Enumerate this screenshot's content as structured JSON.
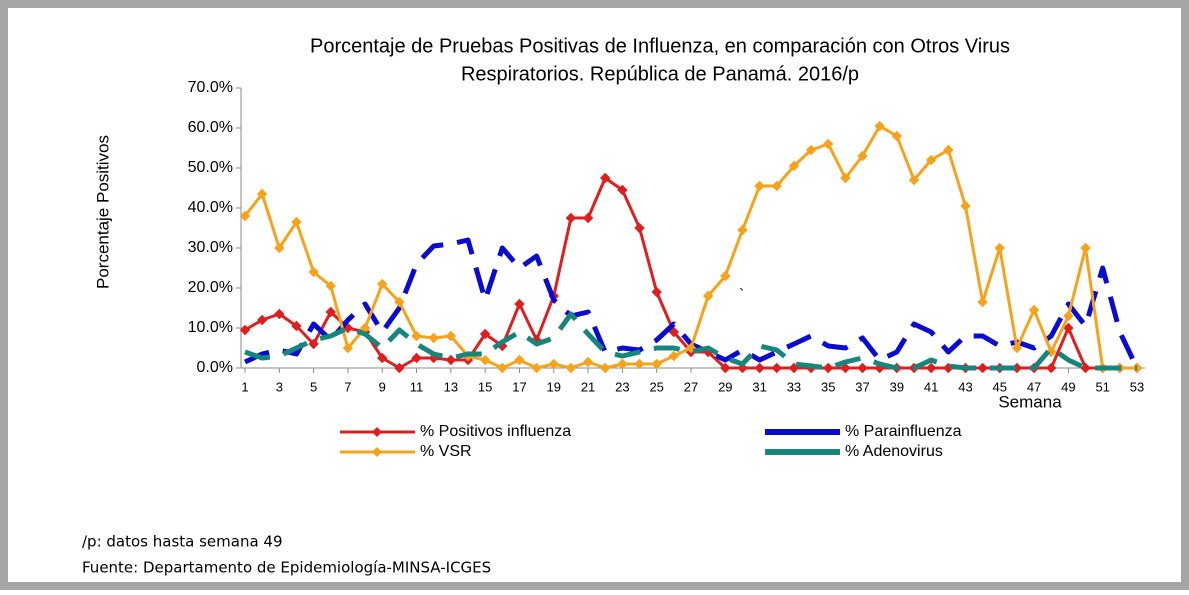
{
  "chart_data": {
    "type": "line",
    "title": [
      "Porcentaje de Pruebas Positivas de Influenza, en comparación con Otros Virus",
      "Respiratorios. República de Panamá. 2016/p"
    ],
    "y_label": "Porcentaje Positivos",
    "x_label": "Semana",
    "x": [
      1,
      2,
      3,
      4,
      5,
      6,
      7,
      8,
      9,
      10,
      11,
      12,
      13,
      14,
      15,
      16,
      17,
      18,
      19,
      20,
      21,
      22,
      23,
      24,
      25,
      26,
      27,
      28,
      29,
      30,
      31,
      32,
      33,
      34,
      35,
      36,
      37,
      38,
      39,
      40,
      41,
      42,
      43,
      44,
      45,
      46,
      47,
      48,
      49,
      50,
      51,
      52,
      53
    ],
    "xlim": [
      1,
      53
    ],
    "xticks": [
      1,
      3,
      5,
      7,
      9,
      11,
      13,
      15,
      17,
      19,
      21,
      23,
      25,
      27,
      29,
      31,
      33,
      35,
      37,
      39,
      41,
      43,
      45,
      47,
      49,
      51,
      53
    ],
    "ylim": [
      0,
      70
    ],
    "yticks": [
      {
        "value": 0,
        "label": "0.0%"
      },
      {
        "value": 10,
        "label": "10.0%"
      },
      {
        "value": 20,
        "label": "20.0%"
      },
      {
        "value": 30,
        "label": "30.0%"
      },
      {
        "value": 40,
        "label": "40.0%"
      },
      {
        "value": 50,
        "label": "50.0%"
      },
      {
        "value": 60,
        "label": "60.0%"
      },
      {
        "value": 70,
        "label": "70.0%"
      }
    ],
    "legend": "bottom",
    "series": [
      {
        "name": "% Positivos influenza",
        "color": "#dd1f1f",
        "style": "markers",
        "values": [
          9.5,
          12,
          13.5,
          10.5,
          6,
          14,
          10,
          9,
          2.5,
          0,
          2.5,
          2.5,
          2,
          2,
          8.5,
          5.5,
          16,
          7,
          18,
          37.5,
          37.5,
          47.5,
          44.5,
          35,
          19,
          9,
          4,
          4,
          0,
          0,
          0,
          0,
          0,
          0,
          0,
          0,
          0,
          0,
          0,
          0,
          0,
          0,
          0,
          0,
          0,
          0,
          0,
          0,
          10,
          0,
          0,
          0,
          0
        ]
      },
      {
        "name": "% Parainfluenza",
        "color": "#0a0ad0",
        "style": "dashed",
        "values": [
          1.5,
          3.5,
          4.5,
          3.5,
          11,
          7,
          12,
          16,
          9,
          15,
          26,
          30.5,
          31,
          32,
          17,
          30,
          25,
          28,
          17,
          13,
          14,
          4,
          5,
          4.5,
          7,
          11,
          6,
          4,
          2,
          4.5,
          2,
          4,
          6,
          8,
          5.5,
          5,
          7.5,
          2,
          4,
          11,
          9,
          4,
          8,
          8,
          5.5,
          6.5,
          5,
          8,
          16,
          10.5,
          25,
          9,
          0
        ]
      },
      {
        "name": "% VSR",
        "color": "#f7a21b",
        "style": "markers",
        "values": [
          38,
          43.5,
          30,
          36.5,
          24,
          20.5,
          5,
          10,
          21,
          16.5,
          8,
          7.5,
          8,
          3,
          2,
          0,
          2,
          0,
          1,
          0,
          1.5,
          0,
          1,
          1,
          1,
          3,
          5,
          18,
          23,
          34.5,
          45.5,
          45.5,
          50.5,
          54.5,
          56,
          47.5,
          53,
          60.5,
          58,
          47,
          52,
          54.5,
          40.5,
          16.5,
          30,
          5,
          14.5,
          4,
          13,
          30,
          0,
          0,
          0
        ]
      },
      {
        "name": "% Adenovirus",
        "color": "#16857c",
        "style": "dashed",
        "values": [
          4,
          2.5,
          3,
          5,
          7,
          8,
          10,
          8.5,
          5,
          9.5,
          6,
          3.5,
          2.5,
          3.5,
          3.5,
          6.5,
          9,
          6,
          7.5,
          13.5,
          8.5,
          4,
          3,
          4,
          5,
          5,
          4,
          5,
          2.5,
          1,
          5.5,
          4.5,
          1,
          0.5,
          0,
          1.5,
          2.5,
          1,
          0,
          0,
          2,
          0.5,
          0,
          0,
          0,
          0,
          0,
          5,
          2,
          0,
          0,
          0,
          0
        ]
      }
    ],
    "annotation": "`",
    "notes": [
      "/p: datos hasta semana 49",
      "Fuente: Departamento de Epidemiología-MINSA-ICGES"
    ]
  }
}
